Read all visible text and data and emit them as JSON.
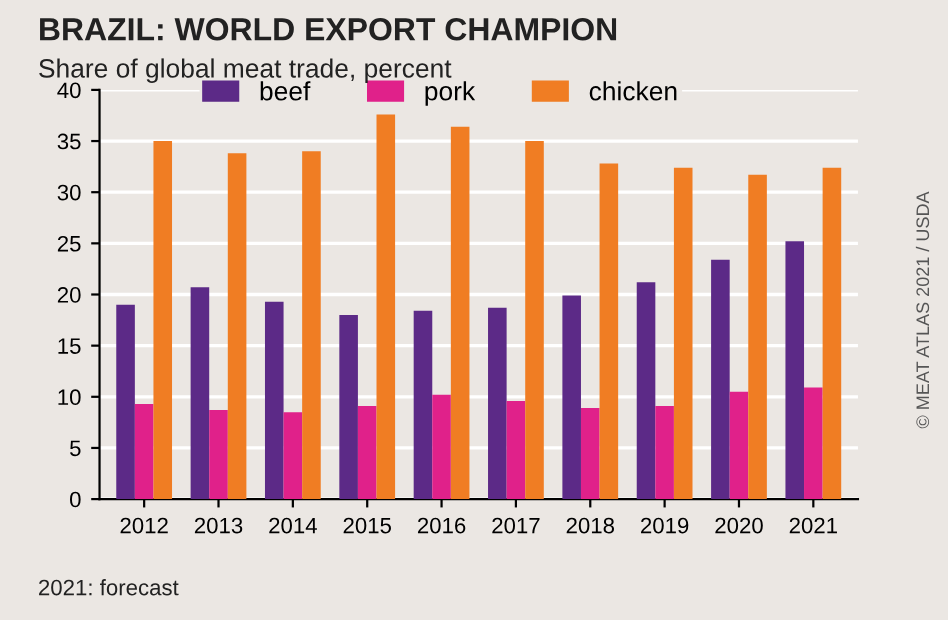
{
  "chart_data": {
    "type": "bar",
    "title": "BRAZIL: WORLD EXPORT CHAMPION",
    "subtitle": "Share of global meat trade, percent",
    "categories": [
      "2012",
      "2013",
      "2014",
      "2015",
      "2016",
      "2017",
      "2018",
      "2019",
      "2020",
      "2021"
    ],
    "series": [
      {
        "name": "beef",
        "color": "#5c2a87",
        "values": [
          19.0,
          20.7,
          19.3,
          18.0,
          18.4,
          18.7,
          19.9,
          21.2,
          23.4,
          25.2
        ]
      },
      {
        "name": "pork",
        "color": "#e0218a",
        "values": [
          9.3,
          8.7,
          8.5,
          9.1,
          10.2,
          9.6,
          8.9,
          9.1,
          10.5,
          10.9
        ]
      },
      {
        "name": "chicken",
        "color": "#f07d23",
        "values": [
          35.0,
          33.8,
          34.0,
          37.6,
          36.4,
          35.0,
          32.8,
          32.4,
          31.7,
          32.4
        ]
      }
    ],
    "ylim": [
      0,
      40
    ],
    "yticks": [
      0,
      5,
      10,
      15,
      20,
      25,
      30,
      35,
      40
    ],
    "grid": "y",
    "legend": "top",
    "annotations": [
      "2021: forecast",
      "© MEAT ATLAS 2021 / USDA"
    ]
  }
}
